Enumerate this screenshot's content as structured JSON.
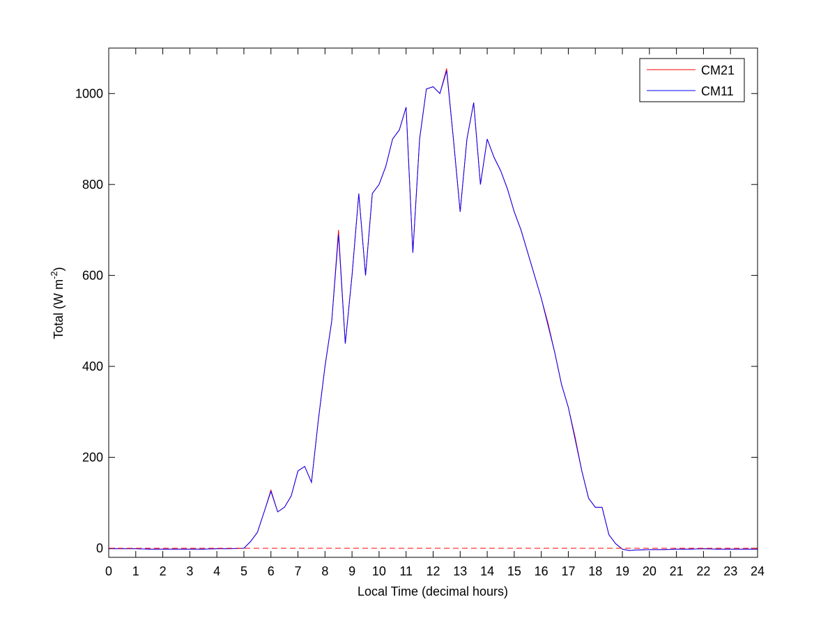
{
  "chart_data": {
    "type": "line",
    "xlabel": "Local Time (decimal hours)",
    "ylabel": {
      "text": "Total (W m",
      "superscript": "-2",
      "suffix": ")"
    },
    "x": [
      0,
      0.5,
      1,
      1.5,
      2,
      2.5,
      3,
      3.5,
      4,
      4.5,
      5,
      5.25,
      5.5,
      5.75,
      6,
      6.25,
      6.5,
      6.75,
      7,
      7.25,
      7.5,
      7.75,
      8,
      8.25,
      8.5,
      8.75,
      9,
      9.25,
      9.5,
      9.75,
      10,
      10.25,
      10.5,
      10.75,
      11,
      11.25,
      11.5,
      11.75,
      12,
      12.25,
      12.5,
      12.75,
      13,
      13.25,
      13.5,
      13.75,
      14,
      14.25,
      14.5,
      14.75,
      15,
      15.25,
      15.5,
      15.75,
      16,
      16.25,
      16.5,
      16.75,
      17,
      17.25,
      17.5,
      17.75,
      18,
      18.25,
      18.5,
      18.75,
      19,
      19.25,
      19.5,
      20,
      20.5,
      21,
      21.5,
      22,
      22.5,
      23,
      23.5,
      24
    ],
    "series": [
      {
        "name": "CM21",
        "color": "#ff0000",
        "values": [
          -1,
          -1,
          -1,
          -2,
          -2,
          -2,
          -2,
          -2,
          -1,
          -1,
          0,
          15,
          35,
          80,
          128,
          80,
          90,
          115,
          170,
          180,
          145,
          280,
          400,
          500,
          700,
          450,
          600,
          780,
          600,
          780,
          800,
          840,
          900,
          920,
          970,
          650,
          900,
          1010,
          1015,
          1000,
          1055,
          900,
          740,
          900,
          980,
          800,
          900,
          860,
          830,
          790,
          740,
          700,
          650,
          600,
          550,
          495,
          430,
          360,
          310,
          245,
          170,
          110,
          90,
          90,
          30,
          10,
          -2,
          -5,
          -4,
          -3,
          -3,
          -2,
          -2,
          -1,
          -2,
          -2,
          -2,
          -2
        ]
      },
      {
        "name": "CM11",
        "color": "#0000ff",
        "values": [
          -1,
          -1,
          -1,
          -2,
          -2,
          -2,
          -2,
          -2,
          -1,
          -1,
          0,
          15,
          35,
          80,
          125,
          80,
          90,
          115,
          170,
          180,
          145,
          280,
          400,
          500,
          690,
          450,
          600,
          780,
          600,
          780,
          800,
          840,
          900,
          920,
          970,
          650,
          900,
          1010,
          1015,
          1000,
          1050,
          900,
          740,
          900,
          980,
          800,
          900,
          860,
          830,
          790,
          740,
          700,
          650,
          600,
          550,
          490,
          430,
          360,
          310,
          240,
          170,
          110,
          90,
          90,
          30,
          10,
          -2,
          -5,
          -4,
          -3,
          -3,
          -2,
          -2,
          -1,
          -2,
          -2,
          -2,
          -2
        ]
      }
    ],
    "hline": {
      "value": 0,
      "color": "#ff0000",
      "dashed": true
    },
    "xlim": [
      0,
      24
    ],
    "xticks": [
      0,
      1,
      2,
      3,
      4,
      5,
      6,
      7,
      8,
      9,
      10,
      11,
      12,
      13,
      14,
      15,
      16,
      17,
      18,
      19,
      20,
      21,
      22,
      23,
      24
    ],
    "ylim": [
      -20,
      1100
    ],
    "yticks": [
      0,
      200,
      400,
      600,
      800,
      1000
    ],
    "legend": "upper right",
    "grid": false
  }
}
